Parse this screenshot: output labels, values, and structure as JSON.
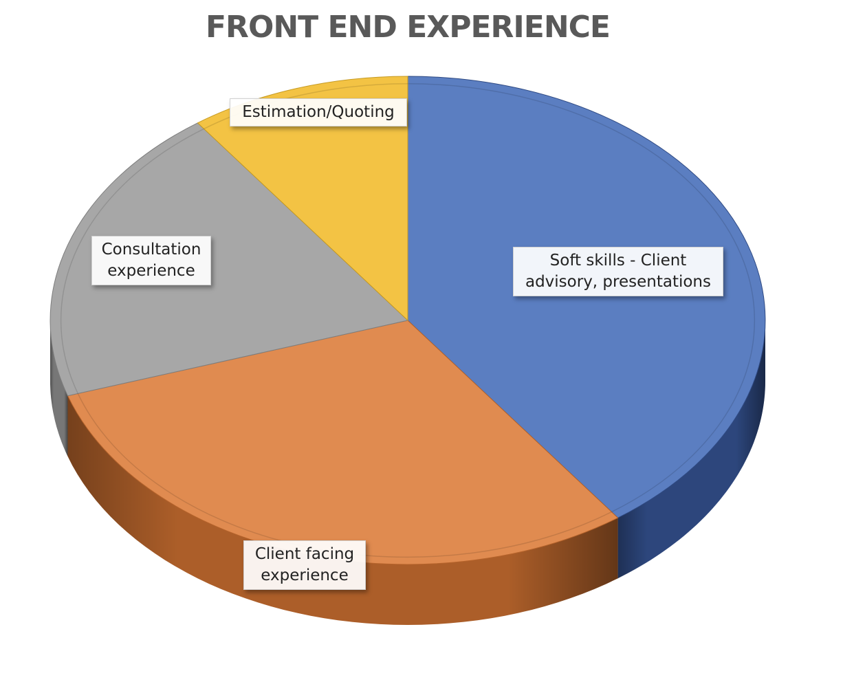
{
  "chart_data": {
    "type": "pie",
    "title": "FRONT END EXPERIENCE",
    "style": "3d",
    "categories": [
      "Soft skills - Client advisory, presentations",
      "Client facing experience",
      "Consultation experience",
      "Estimation/Quoting"
    ],
    "values": [
      40,
      30,
      20,
      10
    ],
    "colors": [
      "#5B7EC1",
      "#E08B50",
      "#A7A7A7",
      "#F3C344"
    ],
    "side_colors": [
      "#2F4A83",
      "#B5632B",
      "#7D7D7D",
      "#C59A22"
    ],
    "labels_shown": true,
    "legend": "none"
  }
}
